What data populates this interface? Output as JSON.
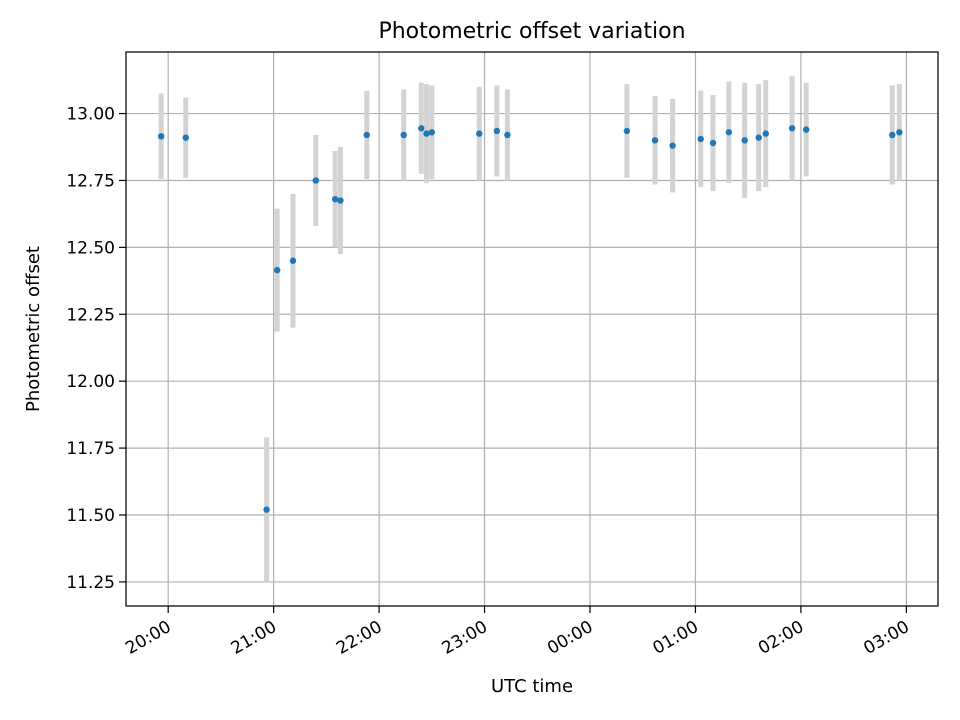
{
  "chart_data": {
    "type": "scatter",
    "title": "Photometric offset variation",
    "xlabel": "UTC time",
    "ylabel": "Photometric offset",
    "x_tick_labels": [
      "20:00",
      "21:00",
      "22:00",
      "23:00",
      "00:00",
      "01:00",
      "02:00",
      "03:00"
    ],
    "y_tick_labels": [
      "11.25",
      "11.50",
      "11.75",
      "12.00",
      "12.25",
      "12.50",
      "12.75",
      "13.00"
    ],
    "x_ticks": [
      "2000-01-01T20:00",
      "2000-01-01T21:00",
      "2000-01-01T22:00",
      "2000-01-01T23:00",
      "2000-01-02T00:00",
      "2000-01-02T01:00",
      "2000-01-02T02:00",
      "2000-01-02T03:00"
    ],
    "y_ticks": [
      11.25,
      11.5,
      11.75,
      12.0,
      12.25,
      12.5,
      12.75,
      13.0
    ],
    "xlim": [
      "2000-01-01T19:36",
      "2000-01-02T03:18"
    ],
    "ylim": [
      11.16,
      13.23
    ],
    "grid": true,
    "colors": {
      "point": "#1f77b4",
      "errorbar": "#d3d3d3",
      "grid": "#b0b0b0"
    },
    "points": [
      {
        "time": "2000-01-01T19:56",
        "y": 12.915,
        "err": 0.16
      },
      {
        "time": "2000-01-01T20:10",
        "y": 12.91,
        "err": 0.15
      },
      {
        "time": "2000-01-01T20:56",
        "y": 11.52,
        "err": 0.27
      },
      {
        "time": "2000-01-01T21:02",
        "y": 12.415,
        "err": 0.23
      },
      {
        "time": "2000-01-01T21:11",
        "y": 12.45,
        "err": 0.25
      },
      {
        "time": "2000-01-01T21:24",
        "y": 12.75,
        "err": 0.17
      },
      {
        "time": "2000-01-01T21:35",
        "y": 12.68,
        "err": 0.18
      },
      {
        "time": "2000-01-01T21:38",
        "y": 12.675,
        "err": 0.2
      },
      {
        "time": "2000-01-01T21:53",
        "y": 12.92,
        "err": 0.165
      },
      {
        "time": "2000-01-01T22:14",
        "y": 12.92,
        "err": 0.17
      },
      {
        "time": "2000-01-01T22:24",
        "y": 12.945,
        "err": 0.17
      },
      {
        "time": "2000-01-01T22:27",
        "y": 12.925,
        "err": 0.185
      },
      {
        "time": "2000-01-01T22:30",
        "y": 12.93,
        "err": 0.175
      },
      {
        "time": "2000-01-01T22:57",
        "y": 12.925,
        "err": 0.175
      },
      {
        "time": "2000-01-01T23:07",
        "y": 12.935,
        "err": 0.17
      },
      {
        "time": "2000-01-01T23:13",
        "y": 12.92,
        "err": 0.17
      },
      {
        "time": "2000-01-02T00:21",
        "y": 12.935,
        "err": 0.175
      },
      {
        "time": "2000-01-02T00:37",
        "y": 12.9,
        "err": 0.165
      },
      {
        "time": "2000-01-02T00:47",
        "y": 12.88,
        "err": 0.175
      },
      {
        "time": "2000-01-02T01:03",
        "y": 12.905,
        "err": 0.18
      },
      {
        "time": "2000-01-02T01:10",
        "y": 12.89,
        "err": 0.18
      },
      {
        "time": "2000-01-02T01:19",
        "y": 12.93,
        "err": 0.19
      },
      {
        "time": "2000-01-02T01:28",
        "y": 12.9,
        "err": 0.215
      },
      {
        "time": "2000-01-02T01:36",
        "y": 12.91,
        "err": 0.2
      },
      {
        "time": "2000-01-02T01:40",
        "y": 12.925,
        "err": 0.2
      },
      {
        "time": "2000-01-02T01:55",
        "y": 12.945,
        "err": 0.195
      },
      {
        "time": "2000-01-02T02:03",
        "y": 12.94,
        "err": 0.175
      },
      {
        "time": "2000-01-02T02:52",
        "y": 12.92,
        "err": 0.185
      },
      {
        "time": "2000-01-02T02:56",
        "y": 12.93,
        "err": 0.18
      }
    ]
  }
}
